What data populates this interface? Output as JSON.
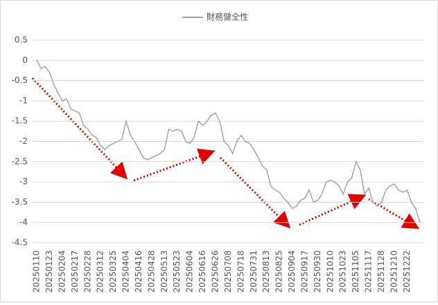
{
  "chart_data": {
    "type": "line",
    "categories": [
      "20250110",
      null,
      null,
      "20250123",
      null,
      null,
      "20250204",
      null,
      null,
      "20250217",
      null,
      null,
      "20250228",
      null,
      null,
      "20250312",
      null,
      null,
      "20250325",
      null,
      null,
      "20250404",
      null,
      null,
      "20250416",
      null,
      null,
      "20250428",
      null,
      null,
      "20250513",
      null,
      null,
      "20250523",
      null,
      null,
      "20250604",
      null,
      null,
      "20250616",
      null,
      null,
      "20250626",
      null,
      null,
      "20250708",
      null,
      null,
      "20250718",
      null,
      null,
      "20250731",
      null,
      null,
      "20250813",
      null,
      null,
      "20250825",
      null,
      null,
      "20250904",
      null,
      null,
      "20250917",
      null,
      null,
      "20250930",
      null,
      null,
      "20251010",
      null,
      null,
      "20251023",
      null,
      null,
      "20251105",
      null,
      null,
      "20251117",
      null,
      null,
      "20251128",
      null,
      null,
      "20251210",
      null,
      null,
      "20251222",
      null,
      null,
      null
    ],
    "series": [
      {
        "name": "財務健全性",
        "color": "#a5a5a5",
        "values": [
          0,
          -0.2,
          -0.15,
          -0.3,
          -0.6,
          -0.8,
          -1.0,
          -0.95,
          -1.2,
          -1.25,
          -1.3,
          -1.6,
          -1.7,
          -1.85,
          -1.9,
          -2.1,
          -2.2,
          -2.1,
          -2.05,
          -2.0,
          -1.95,
          -1.5,
          -1.85,
          -2.0,
          -2.2,
          -2.4,
          -2.45,
          -2.4,
          -2.35,
          -2.3,
          -2.2,
          -1.7,
          -1.75,
          -1.7,
          -1.75,
          -2.0,
          -2.05,
          -1.9,
          -1.5,
          -1.6,
          -1.5,
          -1.35,
          -1.3,
          -1.5,
          -2.0,
          -2.1,
          -2.3,
          -2.0,
          -1.85,
          -2.0,
          -2.05,
          -2.2,
          -2.4,
          -2.6,
          -2.7,
          -3.1,
          -3.2,
          -3.25,
          -3.4,
          -3.5,
          -3.65,
          -3.6,
          -3.45,
          -3.4,
          -3.2,
          -3.5,
          -3.45,
          -3.3,
          -3.0,
          -2.95,
          -3.0,
          -3.1,
          -3.3,
          -3.0,
          -2.9,
          -2.5,
          -2.7,
          -3.3,
          -3.15,
          -3.5,
          -3.6,
          -3.5,
          -3.2,
          -3.1,
          -3.05,
          -3.2,
          -3.25,
          -3.2,
          -3.5,
          -3.65,
          -4.0
        ]
      }
    ],
    "ylim": [
      -4.5,
      0.5
    ],
    "yticks": [
      0.5,
      0,
      -0.5,
      -1,
      -1.5,
      -2,
      -2.5,
      -3,
      -3.5,
      -4,
      -4.5
    ],
    "grid": true,
    "legend": "top"
  }
}
